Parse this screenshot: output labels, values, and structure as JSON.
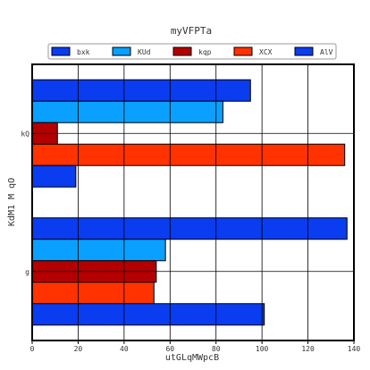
{
  "chart_data": {
    "type": "bar",
    "orientation": "horizontal",
    "title": "myVFPTa",
    "xlabel": "utGLqMWpcB",
    "ylabel": "KdM1 M qO",
    "xlim": [
      0,
      140
    ],
    "x_ticks": [
      0,
      20,
      40,
      60,
      80,
      100,
      120,
      140
    ],
    "grid": true,
    "legend_position": "top",
    "categories": [
      "kQ",
      "g"
    ],
    "series": [
      {
        "name": "bxk",
        "color": "#0a3cf0",
        "values": [
          95,
          137
        ]
      },
      {
        "name": "KUd",
        "color": "#0aa0ff",
        "values": [
          83,
          58
        ]
      },
      {
        "name": "kqp",
        "color": "#b40000",
        "values": [
          11,
          54
        ]
      },
      {
        "name": "XCX",
        "color": "#ff3200",
        "values": [
          136,
          53
        ]
      },
      {
        "name": "AlV",
        "color": "#0a3cf0",
        "values": [
          19,
          101
        ]
      }
    ]
  }
}
